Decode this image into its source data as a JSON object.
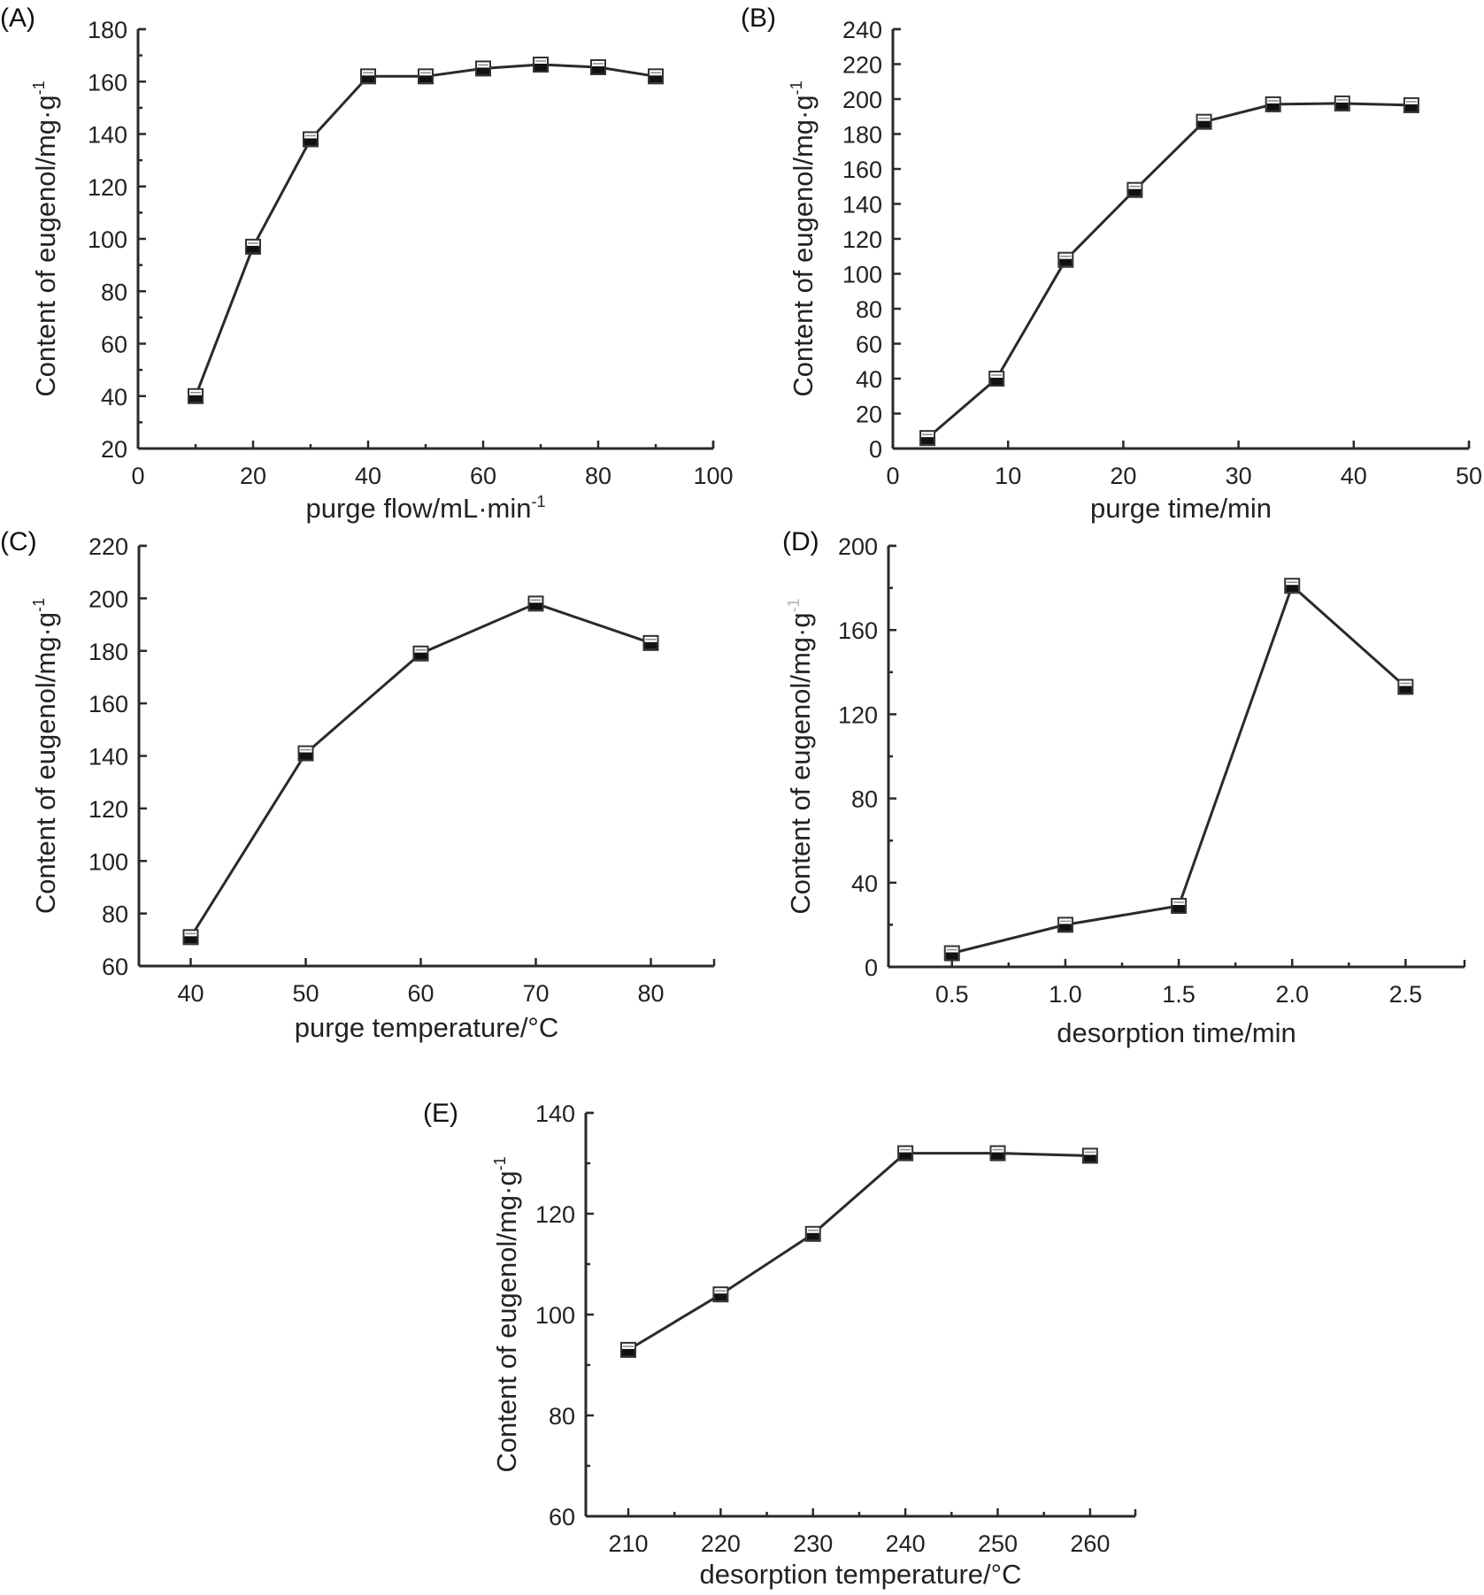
{
  "chart_data": [
    {
      "id": "A",
      "type": "line",
      "panel_label": "(A)",
      "title": "",
      "xlabel": "purge flow/mL·min",
      "xlabel_sup": "-1",
      "ylabel": "Content of eugenol/mg·g",
      "ylabel_sup": "-1",
      "xlim": [
        0,
        100
      ],
      "ylim": [
        20,
        180
      ],
      "xticks": [
        0,
        20,
        40,
        60,
        80,
        100
      ],
      "xtick_labels": [
        "0",
        "20",
        "40",
        "60",
        "80",
        "100"
      ],
      "x_minor_ticks": [
        10,
        30,
        50,
        70,
        90
      ],
      "yticks": [
        20,
        40,
        60,
        80,
        100,
        120,
        140,
        160,
        180
      ],
      "ytick_labels": [
        "20",
        "40",
        "60",
        "80",
        "100",
        "120",
        "140",
        "160",
        "180"
      ],
      "y_minor_ticks": [
        30,
        50,
        70,
        90,
        110,
        130,
        150,
        170
      ],
      "grid": false,
      "series": [
        {
          "name": "eugenol content",
          "x": [
            10,
            20,
            30,
            40,
            50,
            60,
            70,
            80,
            90
          ],
          "y": [
            40,
            97,
            138,
            162,
            162,
            165,
            166.5,
            165.5,
            162
          ]
        }
      ]
    },
    {
      "id": "B",
      "type": "line",
      "panel_label": "(B)",
      "title": "",
      "xlabel": "purge time/min",
      "xlabel_sup": "",
      "ylabel": "Content of eugenol/mg·g",
      "ylabel_sup": "-1",
      "xlim": [
        0,
        50
      ],
      "ylim": [
        0,
        240
      ],
      "xticks": [
        0,
        10,
        20,
        30,
        40,
        50
      ],
      "xtick_labels": [
        "0",
        "10",
        "20",
        "30",
        "40",
        "50"
      ],
      "x_minor_ticks": [],
      "yticks": [
        0,
        20,
        40,
        60,
        80,
        100,
        120,
        140,
        160,
        180,
        200,
        220,
        240
      ],
      "ytick_labels": [
        "0",
        "20",
        "40",
        "60",
        "80",
        "100",
        "120",
        "140",
        "160",
        "180",
        "200",
        "220",
        "240"
      ],
      "y_minor_ticks": [],
      "grid": false,
      "series": [
        {
          "name": "eugenol content",
          "x": [
            3,
            9,
            15,
            21,
            27,
            33,
            39,
            45
          ],
          "y": [
            6,
            40,
            108,
            148,
            187,
            197,
            197.5,
            196.5
          ]
        }
      ]
    },
    {
      "id": "C",
      "type": "line",
      "panel_label": "(C)",
      "title": "",
      "xlabel": "purge temperature/°C",
      "xlabel_sup": "",
      "ylabel": "Content of eugenol/mg·g",
      "ylabel_sup": "-1",
      "xlim": [
        35.5,
        85.5
      ],
      "ylim": [
        60,
        220
      ],
      "xticks": [
        40,
        50,
        60,
        70,
        80
      ],
      "xtick_labels": [
        "40",
        "50",
        "60",
        "70",
        "80"
      ],
      "x_minor_ticks": [],
      "yticks": [
        60,
        80,
        100,
        120,
        140,
        160,
        180,
        200,
        220
      ],
      "ytick_labels": [
        "60",
        "80",
        "100",
        "120",
        "140",
        "160",
        "180",
        "200",
        "220"
      ],
      "y_minor_ticks": [],
      "grid": false,
      "series": [
        {
          "name": "eugenol content",
          "x": [
            40,
            50,
            60,
            70,
            80
          ],
          "y": [
            71,
            141,
            179,
            198,
            183
          ]
        }
      ]
    },
    {
      "id": "D",
      "type": "line",
      "panel_label": "(D)",
      "title": "",
      "xlabel": "desorption time/min",
      "xlabel_sup": "",
      "ylabel": "Content of eugenol/mg·g",
      "ylabel_sup": "-1",
      "xlim": [
        0.22,
        2.76
      ],
      "ylim": [
        0,
        200
      ],
      "xticks": [
        0.5,
        1.0,
        1.5,
        2.0,
        2.5
      ],
      "xtick_labels": [
        "0.5",
        "1.0",
        "1.5",
        "2.0",
        "2.5"
      ],
      "x_minor_ticks": [
        0.75,
        1.25,
        1.75,
        2.25
      ],
      "yticks": [
        0,
        40,
        80,
        120,
        160,
        200
      ],
      "ytick_labels": [
        "0",
        "40",
        "80",
        "120",
        "160",
        "200"
      ],
      "y_minor_ticks": [
        20,
        60,
        100,
        140,
        180
      ],
      "grid": false,
      "series": [
        {
          "name": "eugenol content",
          "x": [
            0.5,
            1.0,
            1.5,
            2.0,
            2.5
          ],
          "y": [
            6.5,
            20,
            29,
            181,
            133
          ]
        }
      ]
    },
    {
      "id": "E",
      "type": "line",
      "panel_label": "(E)",
      "title": "",
      "xlabel": "desorption temperature/°C",
      "xlabel_sup": "",
      "ylabel": "Content of eugenol/mg·g",
      "ylabel_sup": "-1",
      "xlim": [
        205.4,
        264.9
      ],
      "ylim": [
        60,
        140
      ],
      "xticks": [
        210,
        220,
        230,
        240,
        250,
        260
      ],
      "xtick_labels": [
        "210",
        "220",
        "230",
        "240",
        "250",
        "260"
      ],
      "x_minor_ticks": [
        215,
        225,
        235,
        245,
        255
      ],
      "yticks": [
        60,
        80,
        100,
        120,
        140
      ],
      "ytick_labels": [
        "60",
        "80",
        "100",
        "120",
        "140"
      ],
      "y_minor_ticks": [
        70,
        90,
        110,
        130
      ],
      "grid": false,
      "series": [
        {
          "name": "eugenol content",
          "x": [
            210,
            220,
            230,
            240,
            250,
            260
          ],
          "y": [
            93,
            104,
            116,
            132,
            132,
            131.5
          ]
        }
      ]
    }
  ]
}
